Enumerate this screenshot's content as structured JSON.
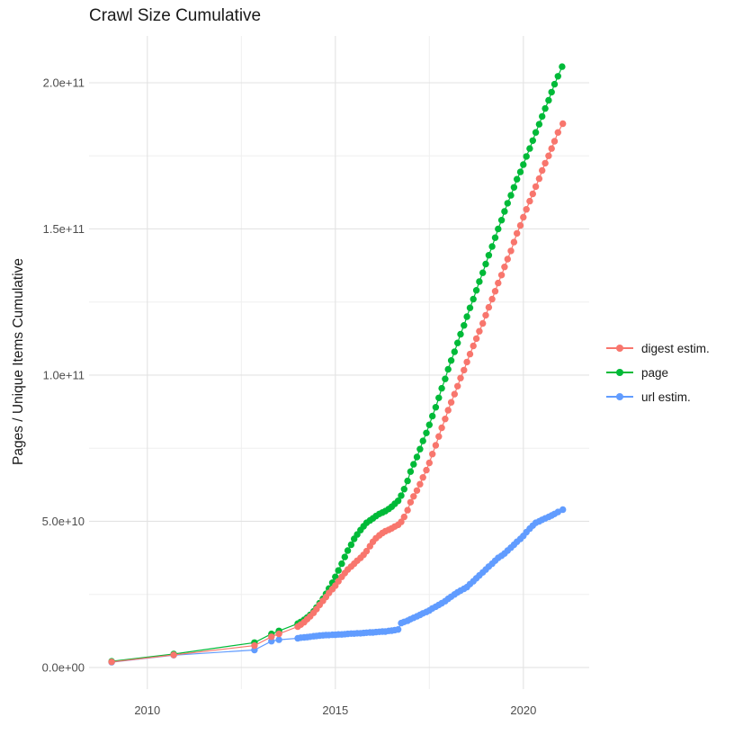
{
  "title": "Crawl Size Cumulative",
  "chart_data": {
    "type": "scatter",
    "title": "Crawl Size Cumulative",
    "xlabel": "",
    "ylabel": "Pages / Unique Items Cumulative",
    "value_unit_note": "point values stored in billions (1 = 1e9 pages/items)",
    "xlim": [
      2008.45,
      2021.75
    ],
    "ylim_e9": [
      -7.4,
      216
    ],
    "grid": true,
    "legend_position": "right",
    "x_major_ticks": [
      {
        "v": 2010,
        "label": "2010"
      },
      {
        "v": 2015,
        "label": "2015"
      },
      {
        "v": 2020,
        "label": "2020"
      }
    ],
    "x_minor_ticks": [
      2012.5,
      2017.5
    ],
    "y_major_ticks": [
      {
        "v": 0,
        "label": "0.0e+00"
      },
      {
        "v": 50,
        "label": "5.0e+10"
      },
      {
        "v": 100,
        "label": "1.0e+11"
      },
      {
        "v": 150,
        "label": "1.5e+11"
      },
      {
        "v": 200,
        "label": "2.0e+11"
      }
    ],
    "y_minor_ticks": [
      25,
      75,
      125,
      175
    ],
    "series": [
      {
        "name": "digest estim.",
        "color": "#F8766D",
        "points": [
          [
            2009.05,
            1.9
          ],
          [
            2010.7,
            4.3
          ],
          [
            2012.85,
            7.5
          ],
          [
            2013.3,
            10.5
          ],
          [
            2013.5,
            11.5
          ],
          [
            2014,
            14
          ],
          [
            2014.08,
            14.7
          ],
          [
            2014.17,
            15.5
          ],
          [
            2014.25,
            16.5
          ],
          [
            2014.33,
            17.5
          ],
          [
            2014.42,
            18.7
          ],
          [
            2014.5,
            20
          ],
          [
            2014.58,
            21.4
          ],
          [
            2014.67,
            22.8
          ],
          [
            2014.75,
            24.1
          ],
          [
            2014.83,
            25.5
          ],
          [
            2014.92,
            26.8
          ],
          [
            2015,
            28
          ],
          [
            2015.08,
            29.5
          ],
          [
            2015.17,
            31
          ],
          [
            2015.25,
            32.3
          ],
          [
            2015.33,
            33.5
          ],
          [
            2015.42,
            34.5
          ],
          [
            2015.5,
            35.5
          ],
          [
            2015.58,
            36.5
          ],
          [
            2015.67,
            37.5
          ],
          [
            2015.75,
            38.5
          ],
          [
            2015.83,
            39.8
          ],
          [
            2015.92,
            41.5
          ],
          [
            2016,
            43
          ],
          [
            2016.08,
            44.2
          ],
          [
            2016.17,
            45.2
          ],
          [
            2016.25,
            46
          ],
          [
            2016.33,
            46.6
          ],
          [
            2016.42,
            47.1
          ],
          [
            2016.5,
            47.6
          ],
          [
            2016.58,
            48.2
          ],
          [
            2016.67,
            48.8
          ],
          [
            2016.75,
            49.8
          ],
          [
            2016.83,
            51.5
          ],
          [
            2016.92,
            53.8
          ],
          [
            2017,
            56.5
          ],
          [
            2017.08,
            58.5
          ],
          [
            2017.17,
            60.5
          ],
          [
            2017.25,
            62.7
          ],
          [
            2017.33,
            65
          ],
          [
            2017.42,
            67.5
          ],
          [
            2017.5,
            70
          ],
          [
            2017.58,
            73
          ],
          [
            2017.67,
            76
          ],
          [
            2017.75,
            79
          ],
          [
            2017.83,
            82
          ],
          [
            2017.92,
            85
          ],
          [
            2018,
            88
          ],
          [
            2018.08,
            90.7
          ],
          [
            2018.17,
            93.5
          ],
          [
            2018.25,
            96.2
          ],
          [
            2018.33,
            99
          ],
          [
            2018.42,
            101.7
          ],
          [
            2018.5,
            104.5
          ],
          [
            2018.58,
            107.2
          ],
          [
            2018.67,
            110
          ],
          [
            2018.75,
            112.5
          ],
          [
            2018.83,
            115
          ],
          [
            2018.92,
            117.7
          ],
          [
            2019,
            120.5
          ],
          [
            2019.08,
            123.2
          ],
          [
            2019.17,
            126
          ],
          [
            2019.25,
            128.7
          ],
          [
            2019.33,
            131.5
          ],
          [
            2019.42,
            134.2
          ],
          [
            2019.5,
            137
          ],
          [
            2019.58,
            139.7
          ],
          [
            2019.67,
            142.5
          ],
          [
            2019.75,
            145.5
          ],
          [
            2019.83,
            148.5
          ],
          [
            2019.92,
            151.2
          ],
          [
            2020,
            154
          ],
          [
            2020.08,
            156.7
          ],
          [
            2020.17,
            159.5
          ],
          [
            2020.25,
            162
          ],
          [
            2020.33,
            164.5
          ],
          [
            2020.42,
            167.2
          ],
          [
            2020.5,
            170
          ],
          [
            2020.58,
            172.5
          ],
          [
            2020.67,
            175
          ],
          [
            2020.75,
            177.5
          ],
          [
            2020.83,
            180
          ],
          [
            2020.92,
            183
          ],
          [
            2021.05,
            186
          ]
        ]
      },
      {
        "name": "page",
        "color": "#00BA38",
        "points": [
          [
            2009.05,
            2.1
          ],
          [
            2010.7,
            4.6
          ],
          [
            2012.85,
            8.5
          ],
          [
            2013.3,
            11.5
          ],
          [
            2013.5,
            12.5
          ],
          [
            2014,
            15
          ],
          [
            2014.08,
            15.6
          ],
          [
            2014.17,
            16.3
          ],
          [
            2014.25,
            17.1
          ],
          [
            2014.33,
            18
          ],
          [
            2014.42,
            19.2
          ],
          [
            2014.5,
            20.5
          ],
          [
            2014.58,
            22
          ],
          [
            2014.67,
            23.5
          ],
          [
            2014.75,
            25.2
          ],
          [
            2014.83,
            27
          ],
          [
            2014.92,
            29
          ],
          [
            2015,
            31
          ],
          [
            2015.08,
            33.2
          ],
          [
            2015.17,
            35.5
          ],
          [
            2015.25,
            37.8
          ],
          [
            2015.33,
            40
          ],
          [
            2015.42,
            42
          ],
          [
            2015.5,
            44
          ],
          [
            2015.58,
            45.5
          ],
          [
            2015.67,
            47
          ],
          [
            2015.75,
            48.3
          ],
          [
            2015.83,
            49.5
          ],
          [
            2015.92,
            50.3
          ],
          [
            2016,
            51
          ],
          [
            2016.08,
            51.8
          ],
          [
            2016.17,
            52.5
          ],
          [
            2016.25,
            53
          ],
          [
            2016.33,
            53.5
          ],
          [
            2016.42,
            54.2
          ],
          [
            2016.5,
            55
          ],
          [
            2016.58,
            56
          ],
          [
            2016.67,
            57
          ],
          [
            2016.75,
            58.8
          ],
          [
            2016.83,
            61
          ],
          [
            2016.92,
            63.8
          ],
          [
            2017,
            67
          ],
          [
            2017.08,
            69.5
          ],
          [
            2017.17,
            72
          ],
          [
            2017.25,
            74.7
          ],
          [
            2017.33,
            77.5
          ],
          [
            2017.42,
            80.2
          ],
          [
            2017.5,
            83
          ],
          [
            2017.58,
            86
          ],
          [
            2017.67,
            89
          ],
          [
            2017.75,
            92.2
          ],
          [
            2017.83,
            95.5
          ],
          [
            2017.92,
            98.7
          ],
          [
            2018,
            102
          ],
          [
            2018.08,
            105
          ],
          [
            2018.17,
            108
          ],
          [
            2018.25,
            111
          ],
          [
            2018.33,
            114
          ],
          [
            2018.42,
            117
          ],
          [
            2018.5,
            120
          ],
          [
            2018.58,
            123
          ],
          [
            2018.67,
            126
          ],
          [
            2018.75,
            129
          ],
          [
            2018.83,
            132
          ],
          [
            2018.92,
            135
          ],
          [
            2019,
            138
          ],
          [
            2019.08,
            141
          ],
          [
            2019.17,
            144
          ],
          [
            2019.25,
            147
          ],
          [
            2019.33,
            150
          ],
          [
            2019.42,
            153
          ],
          [
            2019.5,
            156
          ],
          [
            2019.58,
            158.8
          ],
          [
            2019.67,
            161.5
          ],
          [
            2019.75,
            164.2
          ],
          [
            2019.83,
            167
          ],
          [
            2019.92,
            169.5
          ],
          [
            2020,
            172
          ],
          [
            2020.08,
            174.8
          ],
          [
            2020.17,
            177.5
          ],
          [
            2020.25,
            180.2
          ],
          [
            2020.33,
            183
          ],
          [
            2020.42,
            185.8
          ],
          [
            2020.5,
            188.5
          ],
          [
            2020.58,
            191.2
          ],
          [
            2020.67,
            194
          ],
          [
            2020.75,
            196.8
          ],
          [
            2020.83,
            199.5
          ],
          [
            2020.92,
            202.2
          ],
          [
            2021.03,
            205.5
          ]
        ]
      },
      {
        "name": "url estim.",
        "color": "#619CFF",
        "points": [
          [
            2009.05,
            1.8
          ],
          [
            2010.7,
            4.2
          ],
          [
            2012.85,
            6
          ],
          [
            2013.3,
            9
          ],
          [
            2013.5,
            9.5
          ],
          [
            2014,
            10
          ],
          [
            2014.08,
            10.2
          ],
          [
            2014.17,
            10.3
          ],
          [
            2014.25,
            10.4
          ],
          [
            2014.33,
            10.5
          ],
          [
            2014.42,
            10.7
          ],
          [
            2014.5,
            10.8
          ],
          [
            2014.58,
            10.9
          ],
          [
            2014.67,
            11
          ],
          [
            2014.75,
            11.1
          ],
          [
            2014.83,
            11.1
          ],
          [
            2014.92,
            11.2
          ],
          [
            2015,
            11.2
          ],
          [
            2015.08,
            11.3
          ],
          [
            2015.17,
            11.3
          ],
          [
            2015.25,
            11.4
          ],
          [
            2015.33,
            11.5
          ],
          [
            2015.42,
            11.6
          ],
          [
            2015.5,
            11.6
          ],
          [
            2015.58,
            11.7
          ],
          [
            2015.67,
            11.7
          ],
          [
            2015.75,
            11.8
          ],
          [
            2015.83,
            11.9
          ],
          [
            2015.92,
            12
          ],
          [
            2016,
            12
          ],
          [
            2016.08,
            12.1
          ],
          [
            2016.17,
            12.2
          ],
          [
            2016.25,
            12.3
          ],
          [
            2016.33,
            12.3
          ],
          [
            2016.42,
            12.5
          ],
          [
            2016.5,
            12.6
          ],
          [
            2016.58,
            12.8
          ],
          [
            2016.67,
            13
          ],
          [
            2016.75,
            15.2
          ],
          [
            2016.83,
            15.6
          ],
          [
            2016.92,
            16
          ],
          [
            2017,
            16.5
          ],
          [
            2017.08,
            17
          ],
          [
            2017.17,
            17.5
          ],
          [
            2017.25,
            18
          ],
          [
            2017.33,
            18.5
          ],
          [
            2017.42,
            19
          ],
          [
            2017.5,
            19.5
          ],
          [
            2017.58,
            20.2
          ],
          [
            2017.67,
            20.8
          ],
          [
            2017.75,
            21.4
          ],
          [
            2017.83,
            22
          ],
          [
            2017.92,
            22.7
          ],
          [
            2018,
            23.5
          ],
          [
            2018.08,
            24.2
          ],
          [
            2018.17,
            25
          ],
          [
            2018.25,
            25.7
          ],
          [
            2018.33,
            26.3
          ],
          [
            2018.42,
            26.9
          ],
          [
            2018.5,
            27.5
          ],
          [
            2018.58,
            28.5
          ],
          [
            2018.67,
            29.5
          ],
          [
            2018.75,
            30.5
          ],
          [
            2018.83,
            31.5
          ],
          [
            2018.92,
            32.5
          ],
          [
            2019,
            33.5
          ],
          [
            2019.08,
            34.5
          ],
          [
            2019.17,
            35.5
          ],
          [
            2019.25,
            36.5
          ],
          [
            2019.33,
            37.5
          ],
          [
            2019.42,
            38.2
          ],
          [
            2019.5,
            39
          ],
          [
            2019.58,
            40
          ],
          [
            2019.67,
            41
          ],
          [
            2019.75,
            42
          ],
          [
            2019.83,
            43
          ],
          [
            2019.92,
            44
          ],
          [
            2020,
            45
          ],
          [
            2020.08,
            46.3
          ],
          [
            2020.17,
            47.5
          ],
          [
            2020.25,
            48.5
          ],
          [
            2020.33,
            49.5
          ],
          [
            2020.42,
            50
          ],
          [
            2020.5,
            50.5
          ],
          [
            2020.58,
            51
          ],
          [
            2020.67,
            51.5
          ],
          [
            2020.75,
            52
          ],
          [
            2020.83,
            52.5
          ],
          [
            2020.92,
            53.2
          ],
          [
            2021.05,
            54
          ]
        ]
      }
    ],
    "style": {
      "grid_major_color": "#E3E3E3",
      "grid_minor_color": "#EFEFEF",
      "tick_label_color": "#4d4d4d",
      "text_color": "#1a1a1a",
      "background": "#ffffff"
    }
  }
}
